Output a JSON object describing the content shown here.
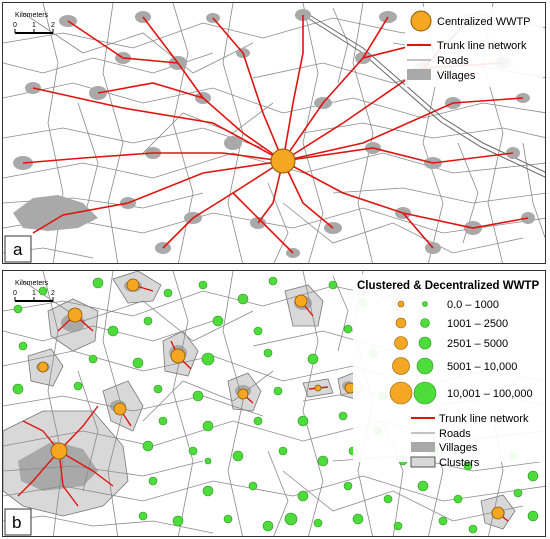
{
  "panel_a": {
    "label": "a",
    "scale": {
      "title": "Kilometers",
      "ticks": [
        "0",
        "1",
        "2"
      ]
    },
    "legend": {
      "wwtp": "Centralized WWTP",
      "trunk": "Trunk line network",
      "roads": "Roads",
      "villages": "Villages"
    }
  },
  "panel_b": {
    "label": "b",
    "scale": {
      "title": "Kilometers",
      "ticks": [
        "0",
        "1",
        "2"
      ]
    },
    "legend": {
      "title": "Clustered & Decentralized WWTP",
      "size_classes": [
        "0.0 – 1000",
        "1001 – 2500",
        "2501 – 5000",
        "5001 – 10,000",
        "10,001 – 100,000"
      ],
      "trunk": "Trunk line network",
      "roads": "Roads",
      "villages": "Villages",
      "clusters": "Clusters"
    }
  },
  "colors": {
    "wwtp_orange": "#f5a623",
    "decentral_green": "#4cdd3a",
    "trunk_red": "#e0140f",
    "road_gray": "#8a8a8a",
    "village_gray": "#a9a9a9",
    "cluster_fill": "#d8d8d8"
  }
}
